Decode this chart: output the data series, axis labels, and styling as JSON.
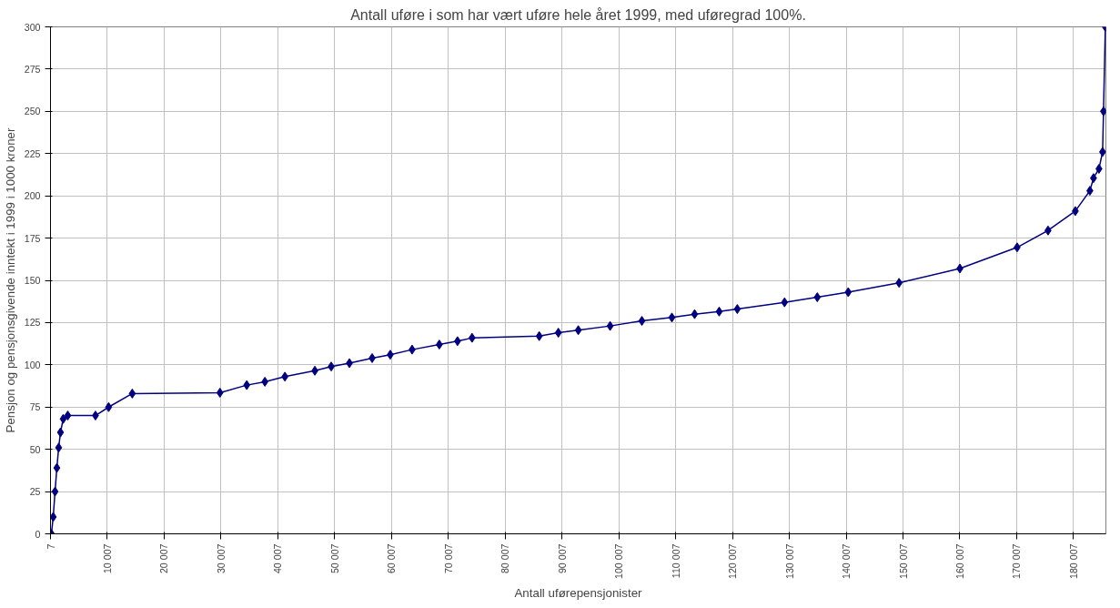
{
  "chart_data": {
    "type": "line",
    "title": "Antall uføre i som har vært uføre hele året 1999, med uføregrad 100%.",
    "xlabel": "Antall uførepensjonister",
    "ylabel": "Pensjon og pensjonsgivende inntekt i 1999 i 1000 kroner",
    "x": [
      167,
      487,
      806,
      1126,
      1446,
      1765,
      2245,
      3044,
      7920,
      10238,
      14393,
      29820,
      34535,
      37730,
      41250,
      46520,
      49400,
      52600,
      56600,
      59790,
      63630,
      68420,
      71620,
      74180,
      86000,
      89360,
      92870,
      98470,
      104060,
      109340,
      113340,
      117660,
      120850,
      129160,
      134920,
      140360,
      149310,
      160010,
      170080,
      175520,
      180320,
      182880,
      183520,
      184480,
      185120,
      185280,
      185600
    ],
    "series": [
      {
        "color": "#000080",
        "values": [
          0,
          10,
          25,
          39,
          51,
          60,
          68,
          70,
          70,
          75,
          83,
          83.5,
          88,
          90,
          93,
          96.5,
          99,
          101,
          104,
          106,
          109,
          112,
          114,
          116,
          117,
          119,
          120.5,
          123,
          126,
          128,
          130,
          131.5,
          133,
          137,
          140,
          143,
          148.5,
          157,
          169.5,
          179.5,
          191,
          203,
          210.5,
          216,
          226,
          250,
          300
        ]
      }
    ],
    "xlim": [
      7,
      185700
    ],
    "ylim": [
      0,
      300
    ],
    "xticks": [
      7,
      {
        "value": 10007,
        "label": "10 007"
      },
      {
        "value": 20007,
        "label": "20 007"
      },
      {
        "value": 30007,
        "label": "30 007"
      },
      {
        "value": 40007,
        "label": "40 007"
      },
      {
        "value": 50007,
        "label": "50 007"
      },
      {
        "value": 60007,
        "label": "60 007"
      },
      {
        "value": 70007,
        "label": "70 007"
      },
      {
        "value": 80007,
        "label": "80 007"
      },
      {
        "value": 90007,
        "label": "90 007"
      },
      {
        "value": 100007,
        "label": "100 007"
      },
      {
        "value": 110007,
        "label": "110 007"
      },
      {
        "value": 120007,
        "label": "120 007"
      },
      {
        "value": 130007,
        "label": "130 007"
      },
      {
        "value": 140007,
        "label": "140 007"
      },
      {
        "value": 150007,
        "label": "150 007"
      },
      {
        "value": 160007,
        "label": "160 007"
      },
      {
        "value": 170007,
        "label": "170 007"
      },
      {
        "value": 180007,
        "label": "180 007"
      }
    ],
    "yticks": [
      0,
      25,
      50,
      75,
      100,
      125,
      150,
      175,
      200,
      225,
      250,
      275,
      300
    ],
    "grid": true,
    "marker": "diamond",
    "line_style": "solid"
  }
}
